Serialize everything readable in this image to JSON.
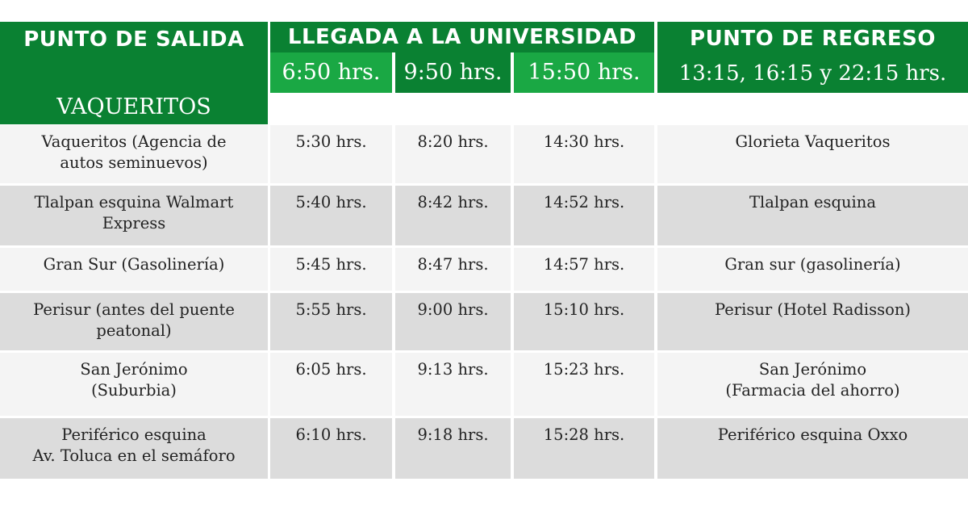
{
  "header": {
    "departure_title": "PUNTO DE SALIDA",
    "departure_location": "VAQUERITOS",
    "arrival_title": "LLEGADA A LA UNIVERSIDAD",
    "arrival_times": [
      "6:50 hrs.",
      "9:50 hrs.",
      "15:50 hrs."
    ],
    "return_title": "PUNTO DE REGRESO",
    "return_times": "13:15, 16:15 y 22:15 hrs."
  },
  "colors": {
    "dark_green": "#0a8132",
    "bright_green": "#1aa844",
    "row_light": "#f4f4f4",
    "row_gray": "#dcdcdc"
  },
  "rows": [
    {
      "stop_lines": [
        "Vaqueritos (Agencia de",
        "autos seminuevos)"
      ],
      "t1": "5:30 hrs.",
      "t2": "8:20 hrs.",
      "t3": "14:30 hrs.",
      "return_lines": [
        "Glorieta Vaqueritos"
      ]
    },
    {
      "stop_lines": [
        "Tlalpan esquina Walmart",
        "Express"
      ],
      "t1": "5:40 hrs.",
      "t2": "8:42 hrs.",
      "t3": "14:52 hrs.",
      "return_lines": [
        "Tlalpan esquina"
      ]
    },
    {
      "stop_lines": [
        "Gran Sur (Gasolinería)"
      ],
      "t1": "5:45 hrs.",
      "t2": "8:47 hrs.",
      "t3": "14:57 hrs.",
      "return_lines": [
        "Gran sur (gasolinería)"
      ]
    },
    {
      "stop_lines": [
        "Perisur (antes del puente",
        "peatonal)"
      ],
      "t1": "5:55 hrs.",
      "t2": "9:00 hrs.",
      "t3": "15:10 hrs.",
      "return_lines": [
        "Perisur (Hotel Radisson)"
      ]
    },
    {
      "stop_lines": [
        "San Jerónimo",
        "(Suburbia)"
      ],
      "t1": "6:05 hrs.",
      "t2": "9:13 hrs.",
      "t3": "15:23 hrs.",
      "return_lines": [
        "San Jerónimo",
        "(Farmacia del ahorro)"
      ]
    },
    {
      "stop_lines": [
        "Periférico esquina",
        "Av. Toluca en el semáforo"
      ],
      "t1": "6:10 hrs.",
      "t2": "9:18 hrs.",
      "t3": "15:28 hrs.",
      "return_lines": [
        "Periférico esquina Oxxo"
      ]
    }
  ]
}
